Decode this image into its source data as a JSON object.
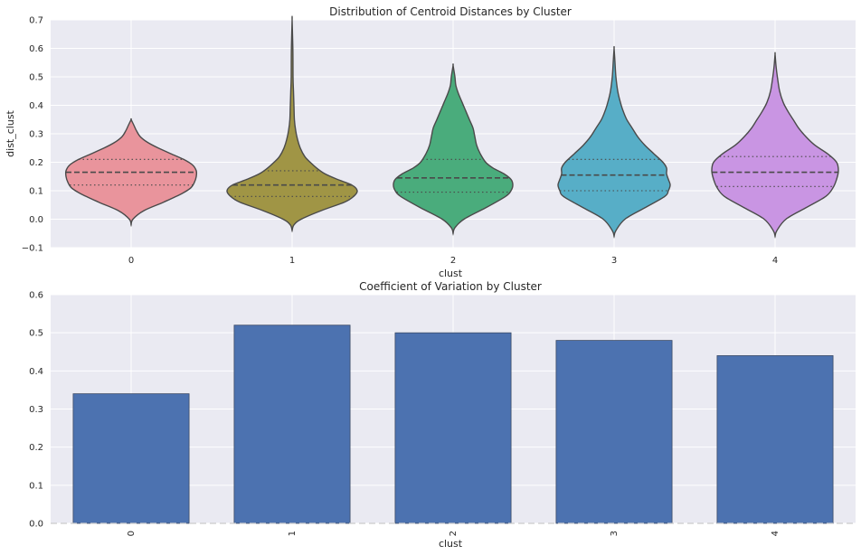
{
  "chart_data": [
    {
      "type": "violin",
      "title": "Distribution of Centroid Distances by Cluster",
      "xlabel": "clust",
      "ylabel": "dist_clust",
      "categories": [
        "0",
        "1",
        "2",
        "3",
        "4"
      ],
      "ylim": [
        -0.1,
        0.7
      ],
      "yticks": [
        "−0.1",
        "0.0",
        "0.1",
        "0.2",
        "0.3",
        "0.4",
        "0.5",
        "0.6",
        "0.7"
      ],
      "grid": true,
      "inner": "quartile",
      "series": [
        {
          "category": "0",
          "color": "#e9949c",
          "quartiles": [
            0.12,
            0.165,
            0.21
          ],
          "profile": [
            [
              -0.02,
              0
            ],
            [
              0.0,
              2
            ],
            [
              0.03,
              14
            ],
            [
              0.06,
              36
            ],
            [
              0.09,
              56
            ],
            [
              0.11,
              66
            ],
            [
              0.13,
              70
            ],
            [
              0.15,
              72
            ],
            [
              0.17,
              72
            ],
            [
              0.19,
              68
            ],
            [
              0.21,
              58
            ],
            [
              0.23,
              44
            ],
            [
              0.25,
              30
            ],
            [
              0.27,
              18
            ],
            [
              0.29,
              10
            ],
            [
              0.31,
              6
            ],
            [
              0.33,
              3
            ],
            [
              0.35,
              0
            ]
          ]
        },
        {
          "category": "1",
          "color": "#a09545",
          "quartiles": [
            0.08,
            0.12,
            0.17
          ],
          "profile": [
            [
              -0.04,
              0
            ],
            [
              -0.02,
              2
            ],
            [
              0.0,
              10
            ],
            [
              0.03,
              32
            ],
            [
              0.06,
              58
            ],
            [
              0.08,
              68
            ],
            [
              0.1,
              72
            ],
            [
              0.12,
              66
            ],
            [
              0.14,
              50
            ],
            [
              0.16,
              36
            ],
            [
              0.18,
              27
            ],
            [
              0.2,
              20
            ],
            [
              0.22,
              14
            ],
            [
              0.25,
              9
            ],
            [
              0.28,
              6
            ],
            [
              0.31,
              4
            ],
            [
              0.35,
              2.5
            ],
            [
              0.4,
              2
            ],
            [
              0.45,
              1.5
            ],
            [
              0.5,
              1
            ],
            [
              0.6,
              0.8
            ],
            [
              0.7,
              0
            ]
          ]
        },
        {
          "category": "2",
          "color": "#4aac7c",
          "quartiles": [
            0.095,
            0.145,
            0.21
          ],
          "profile": [
            [
              -0.05,
              0
            ],
            [
              -0.03,
              2
            ],
            [
              0.0,
              12
            ],
            [
              0.04,
              36
            ],
            [
              0.08,
              58
            ],
            [
              0.1,
              64
            ],
            [
              0.12,
              66
            ],
            [
              0.14,
              64
            ],
            [
              0.16,
              56
            ],
            [
              0.18,
              44
            ],
            [
              0.2,
              36
            ],
            [
              0.23,
              30
            ],
            [
              0.26,
              26
            ],
            [
              0.29,
              24
            ],
            [
              0.32,
              22
            ],
            [
              0.35,
              18
            ],
            [
              0.38,
              14
            ],
            [
              0.41,
              10
            ],
            [
              0.44,
              6
            ],
            [
              0.47,
              3
            ],
            [
              0.5,
              2
            ],
            [
              0.54,
              0
            ]
          ]
        },
        {
          "category": "3",
          "color": "#57aec7",
          "quartiles": [
            0.1,
            0.155,
            0.21
          ],
          "profile": [
            [
              -0.06,
              0
            ],
            [
              -0.04,
              2
            ],
            [
              0.0,
              12
            ],
            [
              0.04,
              34
            ],
            [
              0.08,
              56
            ],
            [
              0.1,
              60
            ],
            [
              0.12,
              62
            ],
            [
              0.14,
              60
            ],
            [
              0.16,
              58
            ],
            [
              0.18,
              58
            ],
            [
              0.2,
              54
            ],
            [
              0.23,
              44
            ],
            [
              0.26,
              34
            ],
            [
              0.29,
              26
            ],
            [
              0.32,
              20
            ],
            [
              0.35,
              14
            ],
            [
              0.38,
              10
            ],
            [
              0.41,
              7
            ],
            [
              0.45,
              4
            ],
            [
              0.5,
              2
            ],
            [
              0.55,
              1
            ],
            [
              0.6,
              0
            ]
          ]
        },
        {
          "category": "4",
          "color": "#c995e3",
          "quartiles": [
            0.115,
            0.165,
            0.22
          ],
          "profile": [
            [
              -0.06,
              0
            ],
            [
              -0.04,
              2
            ],
            [
              0.0,
              12
            ],
            [
              0.04,
              34
            ],
            [
              0.08,
              56
            ],
            [
              0.11,
              64
            ],
            [
              0.14,
              68
            ],
            [
              0.17,
              70
            ],
            [
              0.2,
              68
            ],
            [
              0.23,
              58
            ],
            [
              0.26,
              44
            ],
            [
              0.29,
              34
            ],
            [
              0.32,
              26
            ],
            [
              0.35,
              20
            ],
            [
              0.38,
              14
            ],
            [
              0.41,
              9
            ],
            [
              0.45,
              5
            ],
            [
              0.5,
              2.5
            ],
            [
              0.54,
              1
            ],
            [
              0.58,
              0
            ]
          ]
        }
      ]
    },
    {
      "type": "bar",
      "title": "Coefficient of Variation by Cluster",
      "xlabel": "clust",
      "ylabel": "",
      "categories": [
        "0",
        "1",
        "2",
        "3",
        "4"
      ],
      "values": [
        0.34,
        0.52,
        0.5,
        0.48,
        0.44
      ],
      "ylim": [
        0.0,
        0.6
      ],
      "yticks": [
        "0.0",
        "0.1",
        "0.2",
        "0.3",
        "0.4",
        "0.5",
        "0.6"
      ],
      "color": "#4c72b0",
      "grid": true
    }
  ]
}
